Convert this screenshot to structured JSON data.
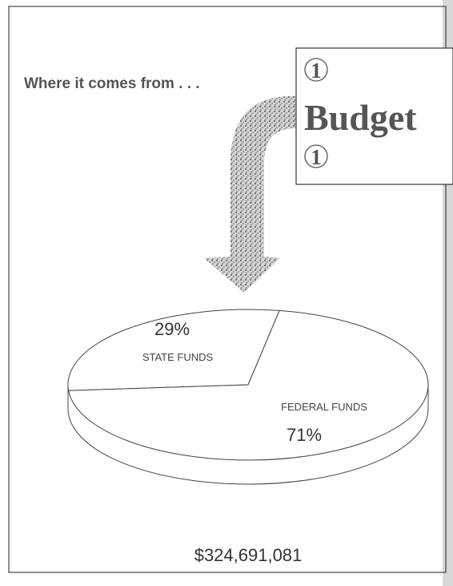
{
  "chart_data": {
    "type": "pie",
    "title": "Where it comes from . . .",
    "categories": [
      "STATE FUNDS",
      "FEDERAL FUNDS"
    ],
    "values": [
      29,
      71
    ],
    "value_labels": [
      "29%",
      "71%"
    ],
    "total": "$324,691,081",
    "logo": {
      "top": "1",
      "word": "Budget",
      "bottom": "1"
    }
  }
}
